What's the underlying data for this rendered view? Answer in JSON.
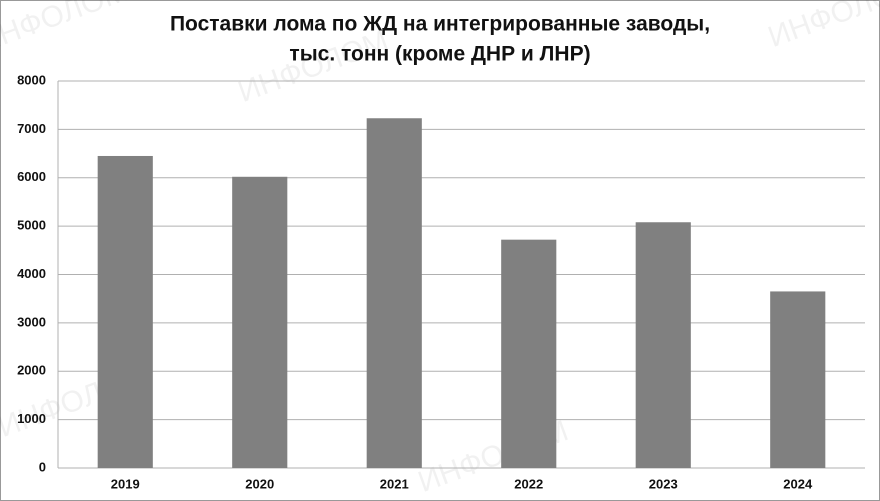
{
  "chart_data": {
    "type": "bar",
    "title": [
      "Поставки лома по ЖД на интегрированные заводы,",
      "тыс. тонн (кроме ДНР и ЛНР)"
    ],
    "watermark": "ИНФОЛОМ",
    "categories": [
      "2019",
      "2020",
      "2021",
      "2022",
      "2023",
      "2024"
    ],
    "values": [
      6450,
      6020,
      7230,
      4720,
      5080,
      3650
    ],
    "color": "#808080",
    "ylim": [
      0,
      8000
    ],
    "yticks": [
      0,
      1000,
      2000,
      3000,
      4000,
      5000,
      6000,
      7000,
      8000
    ],
    "grid": true
  }
}
